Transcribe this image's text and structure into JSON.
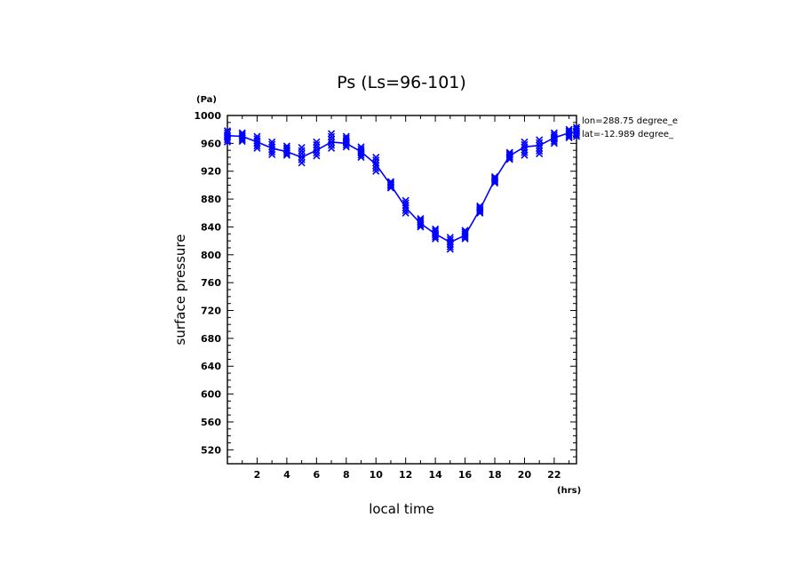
{
  "chart_data": {
    "type": "scatter",
    "title": "Ps (Ls=96-101)",
    "xlabel": "local time",
    "ylabel": "surface pressure",
    "x_unit": "(hrs)",
    "y_unit": "(Pa)",
    "xlim": [
      0,
      23.5
    ],
    "ylim": [
      500,
      1000
    ],
    "xticks": [
      "2",
      "4",
      "6",
      "8",
      "10",
      "12",
      "14",
      "16",
      "18",
      "20",
      "22"
    ],
    "yticks": [
      "520",
      "560",
      "600",
      "640",
      "680",
      "720",
      "760",
      "800",
      "840",
      "880",
      "920",
      "960",
      "1000"
    ],
    "annotations": [
      "lon=288.75 degree_e",
      "lat=-12.989 degree_"
    ],
    "series": [
      {
        "kind": "mean line",
        "color": "#0000ff",
        "x": [
          0,
          1,
          2,
          3,
          4,
          5,
          6,
          7,
          8,
          9,
          10,
          11,
          12,
          13,
          14,
          15,
          16,
          17,
          18,
          19,
          20,
          21,
          22,
          23,
          23.5
        ],
        "y": [
          971,
          970,
          962,
          953,
          948,
          940,
          950,
          962,
          960,
          948,
          930,
          900,
          868,
          845,
          830,
          818,
          828,
          865,
          908,
          942,
          955,
          957,
          968,
          975,
          977
        ]
      },
      {
        "kind": "sample markers",
        "marker": "x",
        "color": "#0000ff",
        "x": [
          0,
          1,
          2,
          3,
          4,
          5,
          6,
          7,
          8,
          9,
          10,
          11,
          12,
          13,
          14,
          15,
          16,
          17,
          18,
          19,
          20,
          21,
          22,
          23,
          23.5
        ],
        "ymin": [
          962,
          963,
          953,
          944,
          943,
          932,
          942,
          953,
          955,
          940,
          920,
          896,
          860,
          840,
          823,
          808,
          823,
          860,
          903,
          937,
          943,
          945,
          960,
          968,
          970
        ],
        "ymax": [
          978,
          975,
          970,
          962,
          956,
          954,
          962,
          974,
          970,
          955,
          940,
          905,
          878,
          852,
          837,
          825,
          835,
          870,
          912,
          947,
          962,
          965,
          975,
          980,
          983
        ]
      }
    ]
  }
}
